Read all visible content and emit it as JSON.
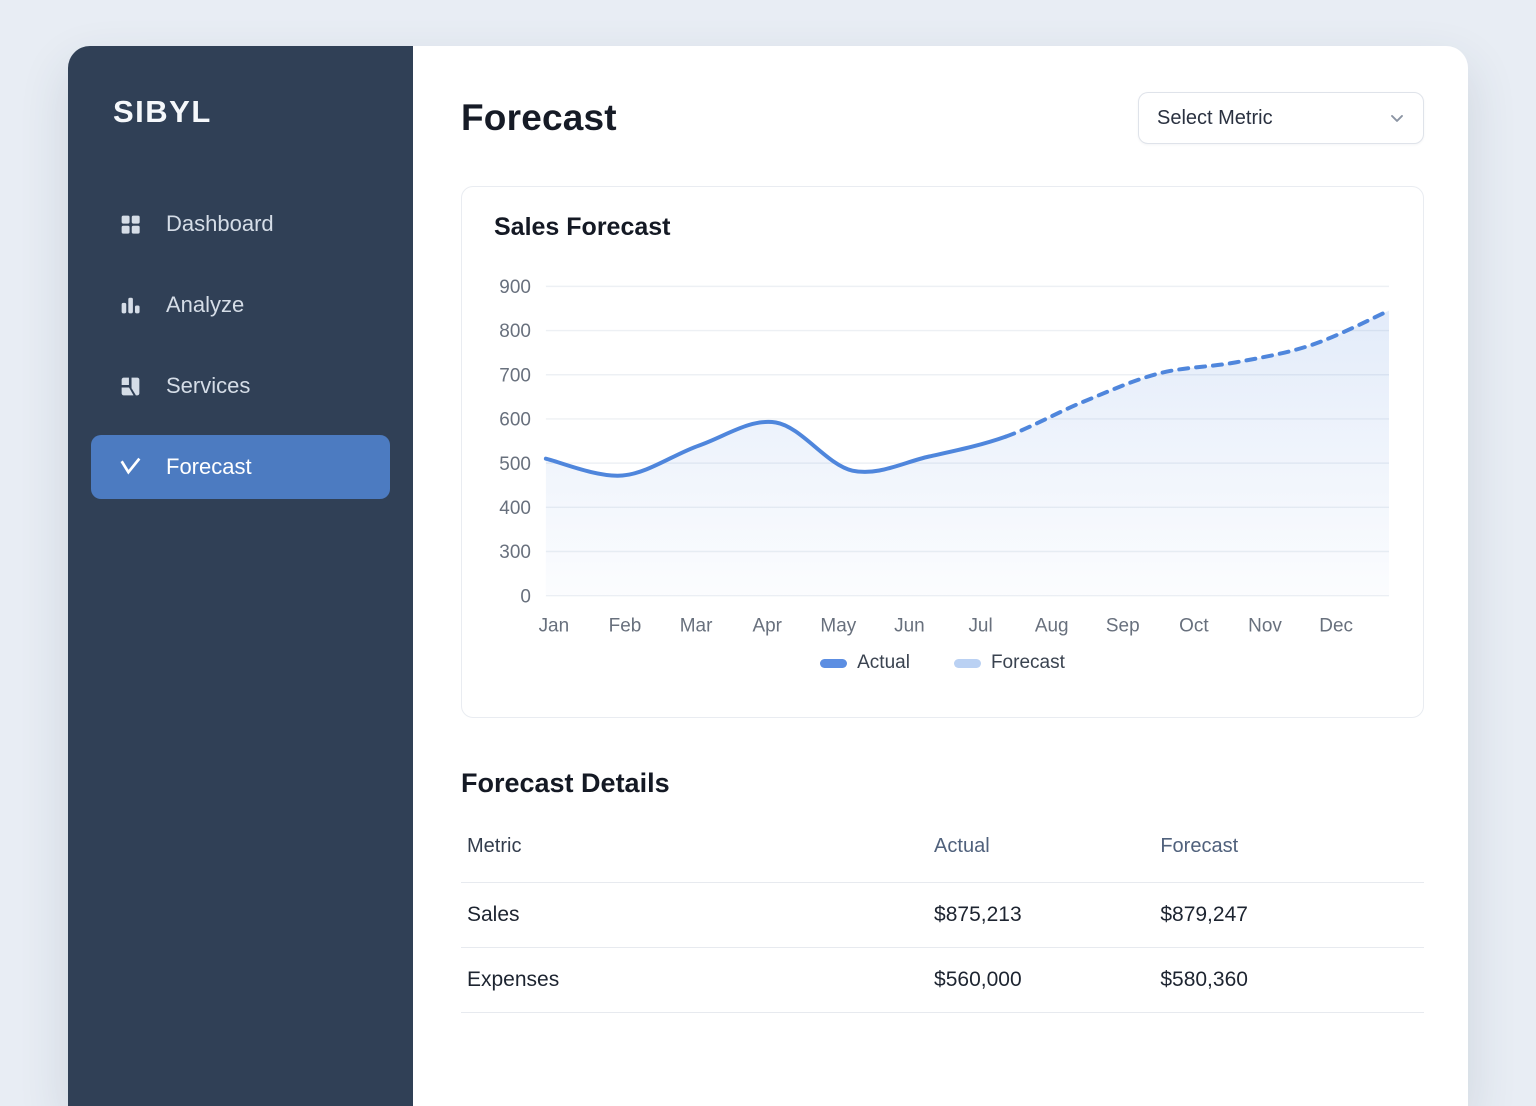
{
  "sidebar": {
    "logo": "SIBYL",
    "items": [
      {
        "label": "Dashboard",
        "icon": "dashboard-grid-icon",
        "active": false
      },
      {
        "label": "Analyze",
        "icon": "analyze-bars-icon",
        "active": false
      },
      {
        "label": "Services",
        "icon": "services-icon",
        "active": false
      },
      {
        "label": "Forecast",
        "icon": "forecast-trend-icon",
        "active": true
      }
    ],
    "colors": {
      "background": "#304056",
      "item_text": "#d5dde7",
      "active_background": "#4c7bc1",
      "active_text": "#ffffff"
    }
  },
  "header": {
    "page_title": "Forecast",
    "metric_dropdown": {
      "value": "Select Metric"
    }
  },
  "chart_card": {
    "title": "Sales Forecast",
    "legend": [
      {
        "label": "Actual",
        "swatch_color": "#5c8ee2"
      },
      {
        "label": "Forecast",
        "swatch_color": "#bad1f3"
      }
    ]
  },
  "chart_data": {
    "type": "line",
    "title": "Sales Forecast",
    "categories": [
      "Jan",
      "Feb",
      "Mar",
      "Apr",
      "May",
      "Jun",
      "Jul",
      "Aug",
      "Sep",
      "Oct",
      "Nov",
      "Dec"
    ],
    "series": [
      {
        "name": "Actual",
        "line_style": "solid",
        "color": "#4f86dc",
        "start_index": 0,
        "values": [
          510,
          472,
          540,
          592,
          483,
          515,
          560
        ]
      },
      {
        "name": "Forecast",
        "line_style": "dashed",
        "color": "#4f86dc",
        "start_index": 6,
        "values": [
          560,
          638,
          703,
          728,
          768,
          845
        ]
      }
    ],
    "yticks": [
      0,
      300,
      400,
      500,
      600,
      700,
      800,
      900
    ],
    "ylim": [
      0,
      900
    ],
    "grid": "horizontal-only",
    "legend_position": "bottom",
    "area_fill": "blue-gradient",
    "colors": {
      "line": "#4f86dc",
      "grid": "#edf0f4",
      "axis_text": "#68707d"
    }
  },
  "details": {
    "section_title": "Forecast Details",
    "columns": [
      "Metric",
      "Actual",
      "Forecast"
    ],
    "rows": [
      {
        "metric": "Sales",
        "actual": "$875,213",
        "forecast": "$879,247"
      },
      {
        "metric": "Expenses",
        "actual": "$560,000",
        "forecast": "$580,360"
      }
    ]
  }
}
